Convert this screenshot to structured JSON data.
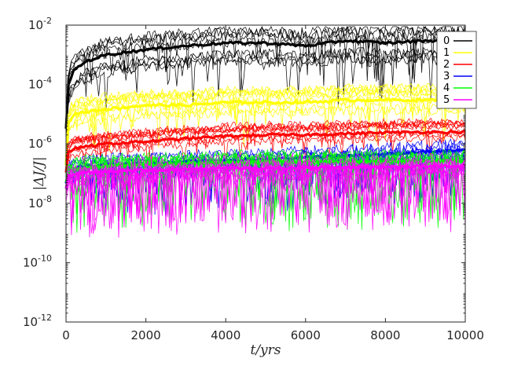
{
  "chart_data": {
    "type": "line",
    "xlabel": "t/yrs",
    "ylabel": "|ΔJ/J|",
    "xlim": [
      0,
      10000
    ],
    "ylim": [
      1e-12,
      0.01
    ],
    "yscale": "log",
    "x_ticks": [
      "0",
      "2000",
      "4000",
      "6000",
      "8000",
      "10000"
    ],
    "x_tick_values": [
      0,
      2000,
      4000,
      6000,
      8000,
      10000
    ],
    "y_ticks": [
      {
        "base": "10",
        "exp": "-12",
        "value": 1e-12
      },
      {
        "base": "10",
        "exp": "-10",
        "value": 1e-10
      },
      {
        "base": "10",
        "exp": "-8",
        "value": 1e-08
      },
      {
        "base": "10",
        "exp": "-6",
        "value": 1e-06
      },
      {
        "base": "10",
        "exp": "-4",
        "value": 0.0001
      },
      {
        "base": "10",
        "exp": "-2",
        "value": 0.01
      }
    ],
    "legend_position": "top-right",
    "series": [
      {
        "name": "0",
        "color": "#000000",
        "x": [
          0,
          50,
          200,
          500,
          1000,
          2000,
          3000,
          4000,
          5000,
          6000,
          7000,
          8000,
          9000,
          10000
        ],
        "y": [
          3e-06,
          0.0001,
          0.0003,
          0.0006,
          0.001,
          0.0015,
          0.002,
          0.0025,
          0.0025,
          0.002,
          0.003,
          0.0025,
          0.003,
          0.003
        ]
      },
      {
        "name": "1",
        "color": "#ffff00",
        "x": [
          0,
          50,
          200,
          500,
          1000,
          2000,
          3000,
          4000,
          5000,
          6000,
          7000,
          8000,
          9000,
          10000
        ],
        "y": [
          2e-07,
          5e-06,
          1e-05,
          1.2e-05,
          1.5e-05,
          2e-05,
          2e-05,
          2.5e-05,
          2.5e-05,
          2.5e-05,
          3e-05,
          3e-05,
          3e-05,
          3e-05
        ]
      },
      {
        "name": "2",
        "color": "#ff0000",
        "x": [
          0,
          50,
          200,
          500,
          1000,
          2000,
          3000,
          4000,
          5000,
          6000,
          7000,
          8000,
          9000,
          10000
        ],
        "y": [
          1e-07,
          5e-07,
          7e-07,
          8e-07,
          1e-06,
          1.2e-06,
          1.5e-06,
          1.8e-06,
          2e-06,
          2e-06,
          2.2e-06,
          2.4e-06,
          2.5e-06,
          2.5e-06
        ]
      },
      {
        "name": "3",
        "color": "#0000ff",
        "x": [
          0,
          50,
          200,
          500,
          1000,
          2000,
          3000,
          4000,
          5000,
          6000,
          7000,
          8000,
          9000,
          10000
        ],
        "y": [
          5e-08,
          1.2e-07,
          1.5e-07,
          1.8e-07,
          2e-07,
          2.2e-07,
          2.5e-07,
          2.8e-07,
          3e-07,
          3.5e-07,
          4e-07,
          4.5e-07,
          5.5e-07,
          6e-07
        ]
      },
      {
        "name": "4",
        "color": "#00ff00",
        "x": [
          0,
          50,
          200,
          500,
          1000,
          2000,
          3000,
          4000,
          5000,
          6000,
          7000,
          8000,
          9000,
          10000
        ],
        "y": [
          5e-08,
          1.1e-07,
          1.4e-07,
          1.6e-07,
          1.8e-07,
          2e-07,
          2.2e-07,
          2.4e-07,
          2.5e-07,
          2.5e-07,
          2.5e-07,
          2.6e-07,
          2.6e-07,
          2.7e-07
        ]
      },
      {
        "name": "5",
        "color": "#ff00ff",
        "x": [
          0,
          50,
          200,
          500,
          1000,
          2000,
          3000,
          4000,
          5000,
          6000,
          7000,
          8000,
          9000,
          10000
        ],
        "y": [
          3e-08,
          8e-08,
          1e-07,
          1.1e-07,
          1.2e-07,
          1.3e-07,
          1.4e-07,
          1.5e-07,
          1.5e-07,
          1.6e-07,
          1.6e-07,
          1.7e-07,
          1.8e-07,
          1.8e-07
        ]
      }
    ],
    "grid": false
  }
}
